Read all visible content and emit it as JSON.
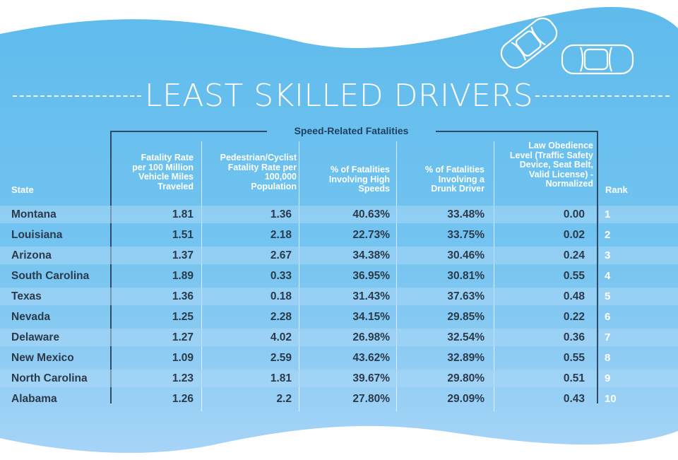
{
  "title": "LEAST SKILLED DRIVERS",
  "group_header": "Speed-Related Fatalities",
  "columns": {
    "state": "State",
    "fatality_rate": [
      "Fatality Rate",
      "per 100 Million",
      "Vehicle Miles",
      "Traveled"
    ],
    "pedestrian": [
      "Pedestrian/Cyclist",
      "Fatality Rate per",
      "100,000",
      "Population"
    ],
    "high_speeds": [
      "% of Fatalities",
      "Involving High",
      "Speeds"
    ],
    "drunk": [
      "% of Fatalities",
      "Involving a",
      "Drunk Driver"
    ],
    "law": [
      "Law Obedience",
      "Level (Traffic Safety",
      "Device, Seat Belt,",
      "Valid License) -",
      "Normalized"
    ],
    "rank": "Rank"
  },
  "rows": [
    {
      "state": "Montana",
      "fatality_rate": "1.81",
      "pedestrian": "1.36",
      "high_speeds": "40.63%",
      "drunk": "33.48%",
      "law": "0.00",
      "rank": "1"
    },
    {
      "state": "Louisiana",
      "fatality_rate": "1.51",
      "pedestrian": "2.18",
      "high_speeds": "22.73%",
      "drunk": "33.75%",
      "law": "0.02",
      "rank": "2"
    },
    {
      "state": "Arizona",
      "fatality_rate": "1.37",
      "pedestrian": "2.67",
      "high_speeds": "34.38%",
      "drunk": "30.46%",
      "law": "0.24",
      "rank": "3"
    },
    {
      "state": "South Carolina",
      "fatality_rate": "1.89",
      "pedestrian": "0.33",
      "high_speeds": "36.95%",
      "drunk": "30.81%",
      "law": "0.55",
      "rank": "4"
    },
    {
      "state": "Texas",
      "fatality_rate": "1.36",
      "pedestrian": "0.18",
      "high_speeds": "31.43%",
      "drunk": "37.63%",
      "law": "0.48",
      "rank": "5"
    },
    {
      "state": "Nevada",
      "fatality_rate": "1.25",
      "pedestrian": "2.28",
      "high_speeds": "34.15%",
      "drunk": "29.85%",
      "law": "0.22",
      "rank": "6"
    },
    {
      "state": "Delaware",
      "fatality_rate": "1.27",
      "pedestrian": "4.02",
      "high_speeds": "26.98%",
      "drunk": "32.54%",
      "law": "0.36",
      "rank": "7"
    },
    {
      "state": "New Mexico",
      "fatality_rate": "1.09",
      "pedestrian": "2.59",
      "high_speeds": "43.62%",
      "drunk": "32.89%",
      "law": "0.55",
      "rank": "8"
    },
    {
      "state": "North Carolina",
      "fatality_rate": "1.23",
      "pedestrian": "1.81",
      "high_speeds": "39.67%",
      "drunk": "29.80%",
      "law": "0.51",
      "rank": "9"
    },
    {
      "state": "Alabama",
      "fatality_rate": "1.26",
      "pedestrian": "2.2",
      "high_speeds": "27.80%",
      "drunk": "29.09%",
      "law": "0.43",
      "rank": "10"
    }
  ],
  "icons": [
    "car-icon",
    "car-icon"
  ],
  "colors": {
    "background_top": "#5ebbec",
    "background_bottom": "#a6d4f7",
    "text_dark": "#2b3a4a",
    "bracket": "#2f4a66",
    "white": "#ffffff"
  }
}
